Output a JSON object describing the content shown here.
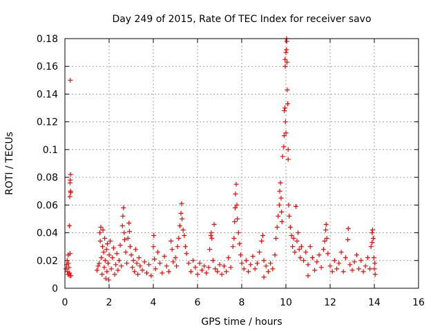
{
  "chart_data": {
    "type": "scatter",
    "title": "Day 249 of 2015, Rate Of TEC Index for receiver savo",
    "xlabel": "GPS time / hours",
    "ylabel": "ROTI / TECUs",
    "xlim": [
      0,
      16
    ],
    "ylim": [
      0,
      0.18
    ],
    "xticks": [
      0,
      2,
      4,
      6,
      8,
      10,
      12,
      14,
      16
    ],
    "yticks": [
      0,
      0.02,
      0.04,
      0.06,
      0.08,
      0.1,
      0.12,
      0.14,
      0.16,
      0.18
    ],
    "xtick_labels": [
      "0",
      "2",
      "4",
      "6",
      "8",
      "10",
      "12",
      "14",
      "16"
    ],
    "ytick_labels": [
      "0",
      "0.02",
      "0.04",
      "0.06",
      "0.08",
      "0.1",
      "0.12",
      "0.14",
      "0.16",
      "0.18"
    ],
    "grid": true,
    "marker": "+",
    "series": [
      {
        "name": "savo",
        "color": "#ff0000",
        "points": [
          [
            0.05,
            0.014
          ],
          [
            0.08,
            0.017
          ],
          [
            0.1,
            0.02
          ],
          [
            0.12,
            0.012
          ],
          [
            0.14,
            0.01
          ],
          [
            0.15,
            0.024
          ],
          [
            0.16,
            0.018
          ],
          [
            0.18,
            0.015
          ],
          [
            0.2,
            0.045
          ],
          [
            0.2,
            0.011
          ],
          [
            0.22,
            0.009
          ],
          [
            0.22,
            0.066
          ],
          [
            0.23,
            0.076
          ],
          [
            0.24,
            0.078
          ],
          [
            0.25,
            0.07
          ],
          [
            0.25,
            0.082
          ],
          [
            0.26,
            0.069
          ],
          [
            0.27,
            0.009
          ],
          [
            0.24,
            0.15
          ],
          [
            0.23,
            0.025
          ],
          [
            1.45,
            0.013
          ],
          [
            1.5,
            0.016
          ],
          [
            1.55,
            0.018
          ],
          [
            1.58,
            0.04
          ],
          [
            1.6,
            0.034
          ],
          [
            1.62,
            0.044
          ],
          [
            1.65,
            0.022
          ],
          [
            1.68,
            0.01
          ],
          [
            1.7,
            0.03
          ],
          [
            1.72,
            0.042
          ],
          [
            1.75,
            0.026
          ],
          [
            1.78,
            0.015
          ],
          [
            1.8,
            0.036
          ],
          [
            1.82,
            0.02
          ],
          [
            1.85,
            0.007
          ],
          [
            1.88,
            0.028
          ],
          [
            1.9,
            0.012
          ],
          [
            1.92,
            0.032
          ],
          [
            1.95,
            0.018
          ],
          [
            1.98,
            0.006
          ],
          [
            2.0,
            0.024
          ],
          [
            2.05,
            0.034
          ],
          [
            2.1,
            0.014
          ],
          [
            2.15,
            0.022
          ],
          [
            2.2,
            0.029
          ],
          [
            2.25,
            0.01
          ],
          [
            2.3,
            0.017
          ],
          [
            2.35,
            0.025
          ],
          [
            2.4,
            0.013
          ],
          [
            2.45,
            0.02
          ],
          [
            2.5,
            0.031
          ],
          [
            2.55,
            0.016
          ],
          [
            2.6,
            0.045
          ],
          [
            2.62,
            0.052
          ],
          [
            2.65,
            0.058
          ],
          [
            2.68,
            0.04
          ],
          [
            2.7,
            0.035
          ],
          [
            2.75,
            0.026
          ],
          [
            2.8,
            0.018
          ],
          [
            2.85,
            0.036
          ],
          [
            2.9,
            0.047
          ],
          [
            2.92,
            0.041
          ],
          [
            2.95,
            0.03
          ],
          [
            3.0,
            0.024
          ],
          [
            3.05,
            0.015
          ],
          [
            3.1,
            0.02
          ],
          [
            3.15,
            0.012
          ],
          [
            3.2,
            0.028
          ],
          [
            3.25,
            0.018
          ],
          [
            3.3,
            0.01
          ],
          [
            3.35,
            0.022
          ],
          [
            3.4,
            0.016
          ],
          [
            3.5,
            0.013
          ],
          [
            3.6,
            0.019
          ],
          [
            3.7,
            0.011
          ],
          [
            3.8,
            0.017
          ],
          [
            3.9,
            0.009
          ],
          [
            4.0,
            0.03
          ],
          [
            4.02,
            0.038
          ],
          [
            4.05,
            0.021
          ],
          [
            4.1,
            0.014
          ],
          [
            4.2,
            0.026
          ],
          [
            4.3,
            0.018
          ],
          [
            4.4,
            0.011
          ],
          [
            4.5,
            0.023
          ],
          [
            4.6,
            0.016
          ],
          [
            4.7,
            0.012
          ],
          [
            4.8,
            0.034
          ],
          [
            4.85,
            0.028
          ],
          [
            4.9,
            0.019
          ],
          [
            5.0,
            0.022
          ],
          [
            5.05,
            0.016
          ],
          [
            5.1,
            0.03
          ],
          [
            5.15,
            0.036
          ],
          [
            5.2,
            0.045
          ],
          [
            5.25,
            0.054
          ],
          [
            5.28,
            0.061
          ],
          [
            5.3,
            0.05
          ],
          [
            5.35,
            0.042
          ],
          [
            5.4,
            0.038
          ],
          [
            5.45,
            0.03
          ],
          [
            5.5,
            0.025
          ],
          [
            5.6,
            0.018
          ],
          [
            5.7,
            0.012
          ],
          [
            5.8,
            0.02
          ],
          [
            5.9,
            0.015
          ],
          [
            6.0,
            0.01
          ],
          [
            6.1,
            0.018
          ],
          [
            6.2,
            0.013
          ],
          [
            6.3,
            0.016
          ],
          [
            6.4,
            0.011
          ],
          [
            6.5,
            0.015
          ],
          [
            6.55,
            0.028
          ],
          [
            6.6,
            0.038
          ],
          [
            6.62,
            0.04
          ],
          [
            6.65,
            0.036
          ],
          [
            6.7,
            0.02
          ],
          [
            6.75,
            0.046
          ],
          [
            6.8,
            0.014
          ],
          [
            6.9,
            0.012
          ],
          [
            7.0,
            0.017
          ],
          [
            7.1,
            0.01
          ],
          [
            7.2,
            0.016
          ],
          [
            7.3,
            0.012
          ],
          [
            7.4,
            0.022
          ],
          [
            7.5,
            0.015
          ],
          [
            7.6,
            0.03
          ],
          [
            7.65,
            0.036
          ],
          [
            7.68,
            0.048
          ],
          [
            7.7,
            0.058
          ],
          [
            7.72,
            0.068
          ],
          [
            7.75,
            0.075
          ],
          [
            7.78,
            0.06
          ],
          [
            7.8,
            0.05
          ],
          [
            7.85,
            0.04
          ],
          [
            7.9,
            0.032
          ],
          [
            7.95,
            0.024
          ],
          [
            8.0,
            0.018
          ],
          [
            8.1,
            0.014
          ],
          [
            8.2,
            0.02
          ],
          [
            8.3,
            0.012
          ],
          [
            8.4,
            0.017
          ],
          [
            8.5,
            0.023
          ],
          [
            8.6,
            0.014
          ],
          [
            8.7,
            0.018
          ],
          [
            8.8,
            0.026
          ],
          [
            8.9,
            0.034
          ],
          [
            8.95,
            0.038
          ],
          [
            9.0,
            0.02
          ],
          [
            9.1,
            0.016
          ],
          [
            9.2,
            0.012
          ],
          [
            9.3,
            0.018
          ],
          [
            9.4,
            0.014
          ],
          [
            9.5,
            0.024
          ],
          [
            9.55,
            0.036
          ],
          [
            9.6,
            0.044
          ],
          [
            9.65,
            0.052
          ],
          [
            9.7,
            0.06
          ],
          [
            9.72,
            0.07
          ],
          [
            9.75,
            0.076
          ],
          [
            9.78,
            0.065
          ],
          [
            9.8,
            0.055
          ],
          [
            9.82,
            0.048
          ],
          [
            9.85,
            0.095
          ],
          [
            9.9,
            0.102
          ],
          [
            9.92,
            0.11
          ],
          [
            9.93,
            0.128
          ],
          [
            9.95,
            0.13
          ],
          [
            9.96,
            0.165
          ],
          [
            9.97,
            0.16
          ],
          [
            9.98,
            0.12
          ],
          [
            10.0,
            0.112
          ],
          [
            10.0,
            0.17
          ],
          [
            10.02,
            0.172
          ],
          [
            10.03,
            0.18
          ],
          [
            10.04,
            0.178
          ],
          [
            10.05,
            0.163
          ],
          [
            10.06,
            0.143
          ],
          [
            10.08,
            0.133
          ],
          [
            10.1,
            0.1
          ],
          [
            10.1,
            0.093
          ],
          [
            10.12,
            0.06
          ],
          [
            10.15,
            0.052
          ],
          [
            10.2,
            0.044
          ],
          [
            10.25,
            0.038
          ],
          [
            10.3,
            0.03
          ],
          [
            10.35,
            0.036
          ],
          [
            10.4,
            0.026
          ],
          [
            10.45,
            0.059
          ],
          [
            10.5,
            0.034
          ],
          [
            10.55,
            0.04
          ],
          [
            10.6,
            0.028
          ],
          [
            10.65,
            0.022
          ],
          [
            10.7,
            0.03
          ],
          [
            10.8,
            0.02
          ],
          [
            10.9,
            0.026
          ],
          [
            11.0,
            0.017
          ],
          [
            11.1,
            0.03
          ],
          [
            11.2,
            0.022
          ],
          [
            11.3,
            0.013
          ],
          [
            11.4,
            0.019
          ],
          [
            11.5,
            0.024
          ],
          [
            11.6,
            0.015
          ],
          [
            11.7,
            0.028
          ],
          [
            11.75,
            0.034
          ],
          [
            11.8,
            0.042
          ],
          [
            11.82,
            0.046
          ],
          [
            11.85,
            0.036
          ],
          [
            11.9,
            0.025
          ],
          [
            12.0,
            0.016
          ],
          [
            12.1,
            0.012
          ],
          [
            12.2,
            0.02
          ],
          [
            12.3,
            0.014
          ],
          [
            12.4,
            0.018
          ],
          [
            12.5,
            0.026
          ],
          [
            12.6,
            0.012
          ],
          [
            12.7,
            0.022
          ],
          [
            12.8,
            0.035
          ],
          [
            12.82,
            0.043
          ],
          [
            12.9,
            0.017
          ],
          [
            13.0,
            0.013
          ],
          [
            13.1,
            0.019
          ],
          [
            13.2,
            0.024
          ],
          [
            13.3,
            0.014
          ],
          [
            13.4,
            0.02
          ],
          [
            13.5,
            0.012
          ],
          [
            13.6,
            0.016
          ],
          [
            13.7,
            0.022
          ],
          [
            13.8,
            0.014
          ],
          [
            13.85,
            0.03
          ],
          [
            13.9,
            0.04
          ],
          [
            13.92,
            0.042
          ],
          [
            13.95,
            0.036
          ],
          [
            13.98,
            0.022
          ],
          [
            14.0,
            0.014
          ],
          [
            14.02,
            0.018
          ],
          [
            14.04,
            0.01
          ],
          [
            13.9,
            0.033
          ],
          [
            11.0,
            0.009
          ],
          [
            9.0,
            0.008
          ]
        ]
      }
    ]
  }
}
